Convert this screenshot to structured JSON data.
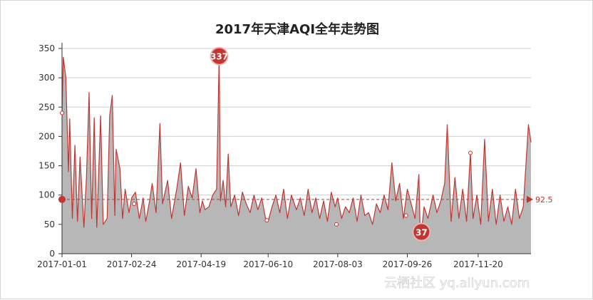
{
  "chart_data": {
    "type": "area",
    "title": "2017年天津AQI全年走势图",
    "xlabel": "",
    "ylabel": "",
    "ylim": [
      0,
      350
    ],
    "yticks": [
      0,
      50,
      100,
      150,
      200,
      250,
      300,
      350
    ],
    "xticks": [
      "2017-01-01",
      "2017-02-24",
      "2017-04-19",
      "2017-06-10",
      "2017-08-03",
      "2017-09-26",
      "2017-11-20"
    ],
    "grid": true,
    "series": [
      {
        "color": "#c23531",
        "area_color": "#b7b7b7",
        "points": [
          [
            "2017-01-01",
            240
          ],
          [
            "2017-01-02",
            335
          ],
          [
            "2017-01-04",
            300
          ],
          [
            "2017-01-06",
            140
          ],
          [
            "2017-01-07",
            230
          ],
          [
            "2017-01-09",
            60
          ],
          [
            "2017-01-11",
            185
          ],
          [
            "2017-01-13",
            55
          ],
          [
            "2017-01-15",
            165
          ],
          [
            "2017-01-18",
            45
          ],
          [
            "2017-01-20",
            130
          ],
          [
            "2017-01-22",
            275
          ],
          [
            "2017-01-24",
            60
          ],
          [
            "2017-01-26",
            232
          ],
          [
            "2017-01-28",
            45
          ],
          [
            "2017-01-31",
            235
          ],
          [
            "2017-02-02",
            50
          ],
          [
            "2017-02-05",
            60
          ],
          [
            "2017-02-07",
            235
          ],
          [
            "2017-02-09",
            270
          ],
          [
            "2017-02-11",
            65
          ],
          [
            "2017-02-12",
            178
          ],
          [
            "2017-02-15",
            145
          ],
          [
            "2017-02-17",
            60
          ],
          [
            "2017-02-19",
            110
          ],
          [
            "2017-02-22",
            70
          ],
          [
            "2017-02-24",
            95
          ],
          [
            "2017-02-27",
            105
          ],
          [
            "2017-03-02",
            60
          ],
          [
            "2017-03-05",
            95
          ],
          [
            "2017-03-07",
            55
          ],
          [
            "2017-03-10",
            90
          ],
          [
            "2017-03-12",
            120
          ],
          [
            "2017-03-15",
            70
          ],
          [
            "2017-03-18",
            222
          ],
          [
            "2017-03-20",
            85
          ],
          [
            "2017-03-24",
            125
          ],
          [
            "2017-03-27",
            60
          ],
          [
            "2017-03-31",
            110
          ],
          [
            "2017-04-03",
            155
          ],
          [
            "2017-04-06",
            65
          ],
          [
            "2017-04-09",
            115
          ],
          [
            "2017-04-12",
            95
          ],
          [
            "2017-04-15",
            145
          ],
          [
            "2017-04-18",
            70
          ],
          [
            "2017-04-20",
            90
          ],
          [
            "2017-04-22",
            75
          ],
          [
            "2017-04-25",
            80
          ],
          [
            "2017-04-28",
            100
          ],
          [
            "2017-05-01",
            110
          ],
          [
            "2017-05-03",
            337
          ],
          [
            "2017-05-04",
            90
          ],
          [
            "2017-05-06",
            125
          ],
          [
            "2017-05-08",
            80
          ],
          [
            "2017-05-10",
            170
          ],
          [
            "2017-05-12",
            80
          ],
          [
            "2017-05-15",
            100
          ],
          [
            "2017-05-18",
            65
          ],
          [
            "2017-05-21",
            105
          ],
          [
            "2017-05-24",
            85
          ],
          [
            "2017-05-27",
            70
          ],
          [
            "2017-05-30",
            100
          ],
          [
            "2017-06-02",
            75
          ],
          [
            "2017-06-05",
            95
          ],
          [
            "2017-06-08",
            60
          ],
          [
            "2017-06-10",
            55
          ],
          [
            "2017-06-13",
            80
          ],
          [
            "2017-06-16",
            100
          ],
          [
            "2017-06-19",
            70
          ],
          [
            "2017-06-22",
            110
          ],
          [
            "2017-06-25",
            60
          ],
          [
            "2017-06-28",
            100
          ],
          [
            "2017-07-02",
            75
          ],
          [
            "2017-07-05",
            95
          ],
          [
            "2017-07-08",
            65
          ],
          [
            "2017-07-11",
            110
          ],
          [
            "2017-07-14",
            70
          ],
          [
            "2017-07-17",
            95
          ],
          [
            "2017-07-20",
            60
          ],
          [
            "2017-07-23",
            90
          ],
          [
            "2017-07-26",
            55
          ],
          [
            "2017-07-29",
            105
          ],
          [
            "2017-08-01",
            80
          ],
          [
            "2017-08-03",
            95
          ],
          [
            "2017-08-06",
            60
          ],
          [
            "2017-08-09",
            80
          ],
          [
            "2017-08-12",
            70
          ],
          [
            "2017-08-15",
            95
          ],
          [
            "2017-08-18",
            55
          ],
          [
            "2017-08-21",
            100
          ],
          [
            "2017-08-24",
            65
          ],
          [
            "2017-08-27",
            70
          ],
          [
            "2017-08-30",
            50
          ],
          [
            "2017-09-02",
            85
          ],
          [
            "2017-09-05",
            70
          ],
          [
            "2017-09-08",
            100
          ],
          [
            "2017-09-11",
            75
          ],
          [
            "2017-09-14",
            155
          ],
          [
            "2017-09-17",
            90
          ],
          [
            "2017-09-20",
            120
          ],
          [
            "2017-09-23",
            60
          ],
          [
            "2017-09-26",
            110
          ],
          [
            "2017-09-29",
            85
          ],
          [
            "2017-10-02",
            60
          ],
          [
            "2017-10-05",
            135
          ],
          [
            "2017-10-06",
            40
          ],
          [
            "2017-10-07",
            37
          ],
          [
            "2017-10-09",
            80
          ],
          [
            "2017-10-12",
            60
          ],
          [
            "2017-10-16",
            100
          ],
          [
            "2017-10-19",
            70
          ],
          [
            "2017-10-22",
            90
          ],
          [
            "2017-10-25",
            120
          ],
          [
            "2017-10-27",
            220
          ],
          [
            "2017-10-30",
            55
          ],
          [
            "2017-11-02",
            130
          ],
          [
            "2017-11-05",
            60
          ],
          [
            "2017-11-08",
            110
          ],
          [
            "2017-11-11",
            55
          ],
          [
            "2017-11-14",
            172
          ],
          [
            "2017-11-16",
            60
          ],
          [
            "2017-11-19",
            100
          ],
          [
            "2017-11-22",
            50
          ],
          [
            "2017-11-25",
            195
          ],
          [
            "2017-11-28",
            55
          ],
          [
            "2017-12-01",
            110
          ],
          [
            "2017-12-04",
            50
          ],
          [
            "2017-12-07",
            100
          ],
          [
            "2017-12-10",
            55
          ],
          [
            "2017-12-13",
            80
          ],
          [
            "2017-12-16",
            50
          ],
          [
            "2017-12-19",
            110
          ],
          [
            "2017-12-22",
            60
          ],
          [
            "2017-12-25",
            80
          ],
          [
            "2017-12-29",
            220
          ],
          [
            "2017-12-31",
            190
          ]
        ]
      }
    ],
    "mark_point_max": {
      "date": "2017-05-03",
      "value": 337,
      "label": "337"
    },
    "mark_point_min": {
      "date": "2017-10-07",
      "value": 37,
      "label": "37"
    },
    "mark_line_average": {
      "value": 92.5,
      "label": "92.5"
    },
    "hollow_points": [
      [
        "2017-01-01",
        240
      ],
      [
        "2017-02-26",
        85
      ],
      [
        "2017-06-09",
        57
      ],
      [
        "2017-08-02",
        50
      ],
      [
        "2017-09-25",
        65
      ],
      [
        "2017-11-14",
        172
      ]
    ]
  },
  "watermark": "云栖社区 yq.aliyun.com"
}
